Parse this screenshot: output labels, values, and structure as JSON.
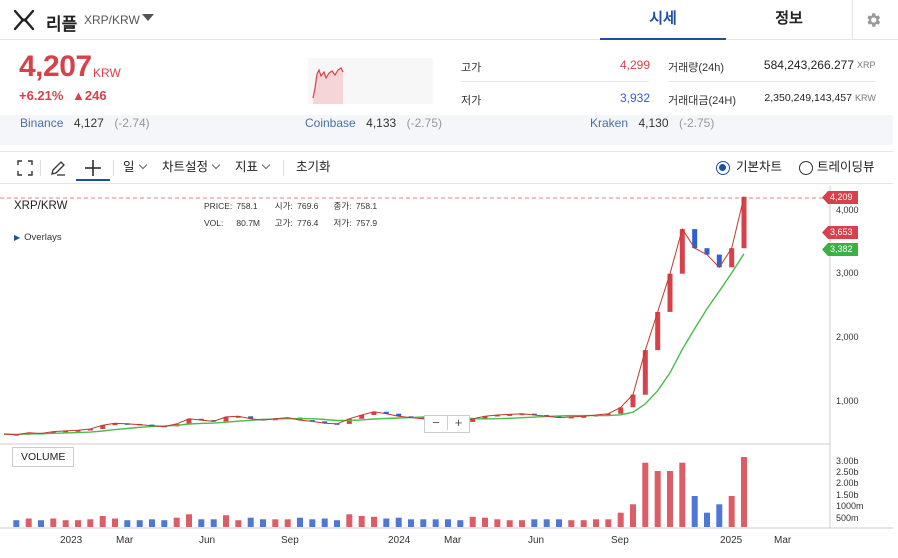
{
  "header": {
    "coin_name": "리플",
    "pair": "XRP/KRW",
    "tabs": [
      "시세",
      "정보"
    ]
  },
  "summary": {
    "price": "4,207",
    "unit": "KRW",
    "change_pct": "+6.21%",
    "change_amt": "▲246",
    "high_label": "고가",
    "high_value": "4,299",
    "low_label": "저가",
    "low_value": "3,932",
    "volume_label": "거래량(24h)",
    "volume_value": "584,243,266.277",
    "volume_unit": "XRP",
    "amount_label": "거래대금(24H)",
    "amount_value": "2,350,249,143,457",
    "amount_unit": "KRW"
  },
  "exchanges": [
    {
      "name": "Binance",
      "price": "4,127",
      "diff": "(-2.74)"
    },
    {
      "name": "Coinbase",
      "price": "4,133",
      "diff": "(-2.75)"
    },
    {
      "name": "Kraken",
      "price": "4,130",
      "diff": "(-2.75)"
    }
  ],
  "toolbar": {
    "interval": "일",
    "chart_settings": "차트설정",
    "indicators": "지표",
    "reset": "초기화",
    "basic_chart": "기본차트",
    "tradingview": "트레이딩뷰"
  },
  "chart_legend": {
    "pair": "XRP/KRW",
    "price_label": "PRICE:",
    "price_value": "758.1",
    "open_label": "시가:",
    "open_value": "769.6",
    "close_label": "종가:",
    "close_value": "758.1",
    "vol_label": "VOL:",
    "vol_value": "80.7M",
    "high_label": "고가:",
    "high_value": "776.4",
    "low_label": "저가:",
    "low_value": "757.9",
    "overlays": "Overlays",
    "volume": "VOLUME"
  },
  "price_tags": {
    "last": "4,209",
    "red": "3,653",
    "green": "3,382"
  },
  "colors": {
    "accent": "#1e4fa0",
    "up": "#d7414b",
    "down": "#2f5fd0",
    "ma": "#4cbb4c"
  },
  "icons": [
    "xrp-logo-icon",
    "gear-icon",
    "fullscreen-icon",
    "pencil-icon",
    "crosshair-icon"
  ],
  "chart_data": {
    "type": "line",
    "y_axis_ticks": [
      "4,000",
      "3,000",
      "2,000",
      "1,000"
    ],
    "volume_axis_ticks": [
      "3.00b",
      "2.50b",
      "2.00b",
      "1.50b",
      "1000m",
      "500m"
    ],
    "x_axis_ticks": [
      "2023",
      "Mar",
      "Jun",
      "Sep",
      "2024",
      "Mar",
      "Jun",
      "Sep",
      "2025",
      "Mar"
    ],
    "series": [
      {
        "name": "XRP/KRW",
        "values": [
          480,
          470,
          500,
          490,
          520,
          530,
          540,
          560,
          620,
          650,
          640,
          630,
          610,
          600,
          640,
          720,
          700,
          680,
          750,
          760,
          720,
          700,
          720,
          740,
          700,
          680,
          650,
          640,
          720,
          780,
          830,
          800,
          760,
          740,
          720,
          700,
          680,
          670,
          720,
          760,
          780,
          790,
          800,
          780,
          760,
          740,
          750,
          760,
          780,
          800,
          900,
          1100,
          1800,
          2400,
          3000,
          3700,
          3400,
          3300,
          3100,
          3400,
          4207
        ]
      }
    ]
  }
}
